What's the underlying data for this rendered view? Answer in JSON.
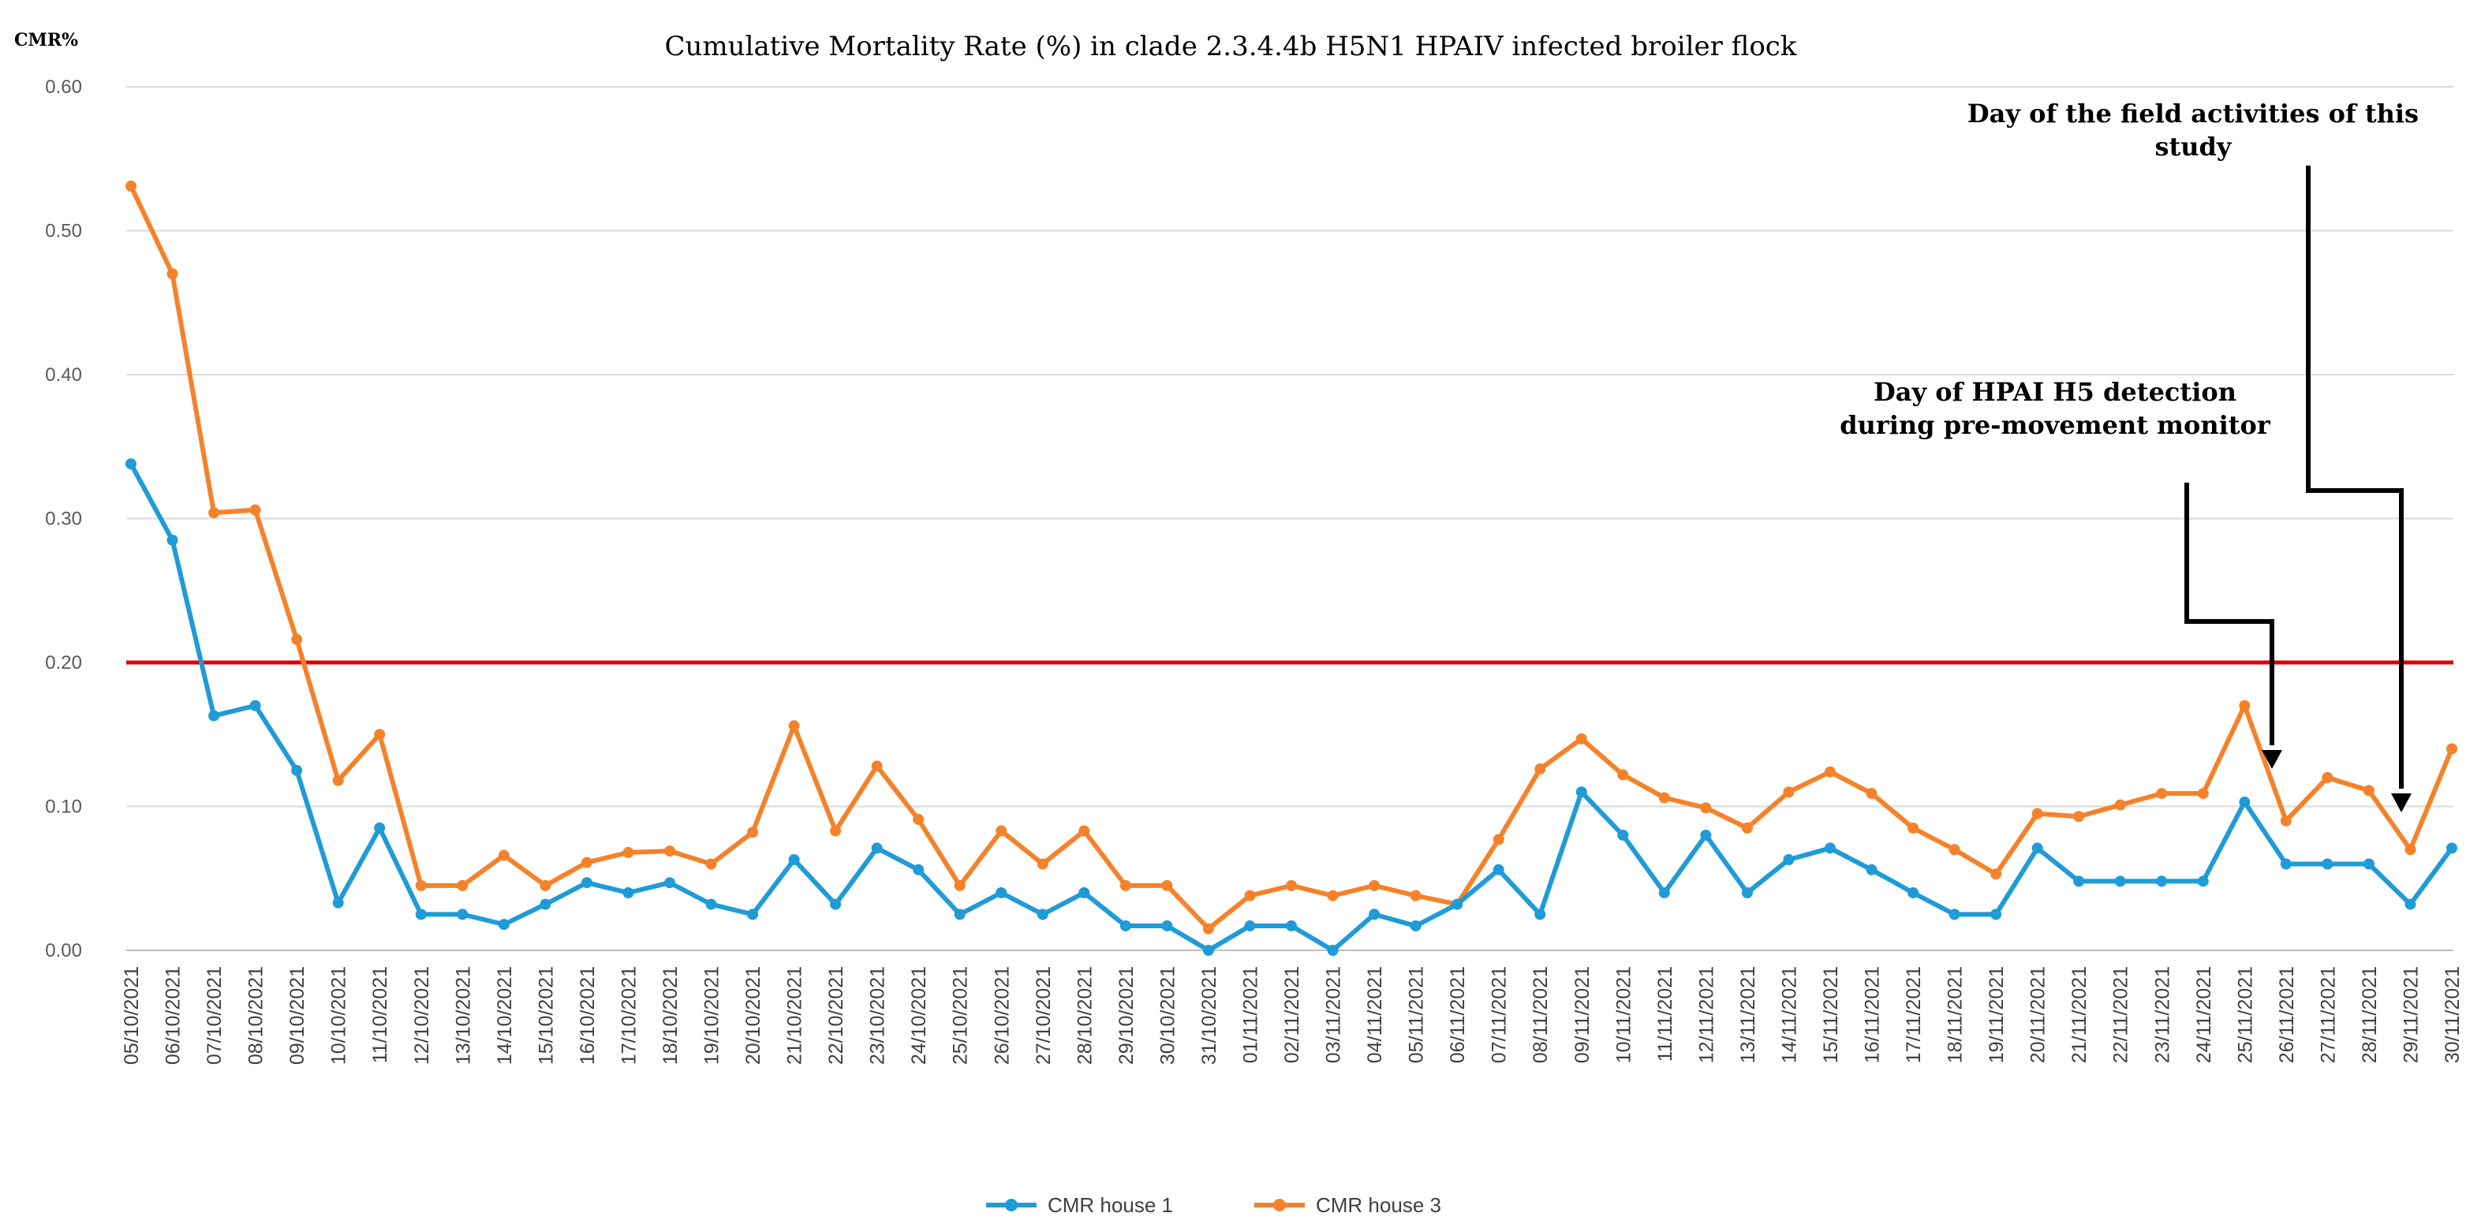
{
  "chart_data": {
    "type": "line",
    "title": "Cumulative Mortality Rate (%) in  clade 2.3.4.4b  H5N1 HPAIV infected broiler flock",
    "ylabel": "CMR%",
    "xlabel": "",
    "ylim": [
      0,
      0.6
    ],
    "yticks": [
      "0.00",
      "0.10",
      "0.20",
      "0.30",
      "0.40",
      "0.50",
      "0.60"
    ],
    "grid": true,
    "legend_position": "bottom-center",
    "threshold": 0.2,
    "threshold_color": "#e00000",
    "categories": [
      "05/10/2021",
      "06/10/2021",
      "07/10/2021",
      "08/10/2021",
      "09/10/2021",
      "10/10/2021",
      "11/10/2021",
      "12/10/2021",
      "13/10/2021",
      "14/10/2021",
      "15/10/2021",
      "16/10/2021",
      "17/10/2021",
      "18/10/2021",
      "19/10/2021",
      "20/10/2021",
      "21/10/2021",
      "22/10/2021",
      "23/10/2021",
      "24/10/2021",
      "25/10/2021",
      "26/10/2021",
      "27/10/2021",
      "28/10/2021",
      "29/10/2021",
      "30/10/2021",
      "31/10/2021",
      "01/11/2021",
      "02/11/2021",
      "03/11/2021",
      "04/11/2021",
      "05/11/2021",
      "06/11/2021",
      "07/11/2021",
      "08/11/2021",
      "09/11/2021",
      "10/11/2021",
      "11/11/2021",
      "12/11/2021",
      "13/11/2021",
      "14/11/2021",
      "15/11/2021",
      "16/11/2021",
      "17/11/2021",
      "18/11/2021",
      "19/11/2021",
      "20/11/2021",
      "21/11/2021",
      "22/11/2021",
      "23/11/2021",
      "24/11/2021",
      "25/11/2021",
      "26/11/2021",
      "27/11/2021",
      "28/11/2021",
      "29/11/2021",
      "30/11/2021"
    ],
    "series": [
      {
        "name": "CMR house 1",
        "color": "#1f9bd7",
        "values": [
          0.338,
          0.285,
          0.163,
          0.17,
          0.125,
          0.033,
          0.085,
          0.025,
          0.025,
          0.018,
          0.032,
          0.047,
          0.04,
          0.047,
          0.032,
          0.025,
          0.063,
          0.032,
          0.071,
          0.056,
          0.025,
          0.04,
          0.025,
          0.04,
          0.017,
          0.017,
          0.0,
          0.017,
          0.017,
          0.0,
          0.025,
          0.017,
          0.032,
          0.056,
          0.025,
          0.11,
          0.08,
          0.04,
          0.08,
          0.04,
          0.063,
          0.071,
          0.056,
          0.04,
          0.025,
          0.025,
          0.071,
          0.048,
          0.048,
          0.048,
          0.048,
          0.103,
          0.06,
          0.06,
          0.06,
          0.032,
          0.071
        ]
      },
      {
        "name": "CMR house 3",
        "color": "#f5822a",
        "values": [
          0.531,
          0.47,
          0.304,
          0.306,
          0.216,
          0.118,
          0.15,
          0.045,
          0.045,
          0.066,
          0.045,
          0.061,
          0.068,
          0.069,
          0.06,
          0.082,
          0.156,
          0.083,
          0.128,
          0.091,
          0.045,
          0.083,
          0.06,
          0.083,
          0.045,
          0.045,
          0.015,
          0.038,
          0.045,
          0.038,
          0.045,
          0.038,
          0.032,
          0.077,
          0.126,
          0.147,
          0.122,
          0.106,
          0.099,
          0.085,
          0.11,
          0.124,
          0.109,
          0.085,
          0.07,
          0.053,
          0.095,
          0.093,
          0.101,
          0.109,
          0.109,
          0.17,
          0.09,
          0.12,
          0.111,
          0.07,
          0.14
        ]
      }
    ],
    "annotations": [
      {
        "id": "detection",
        "lines": [
          "Day of HPAI H5 detection",
          "during pre-movement  monitor"
        ],
        "target": "26/11/2021"
      },
      {
        "id": "field",
        "lines": [
          "Day of the field activities of this",
          "study"
        ],
        "target": "29/11/2021"
      }
    ]
  }
}
